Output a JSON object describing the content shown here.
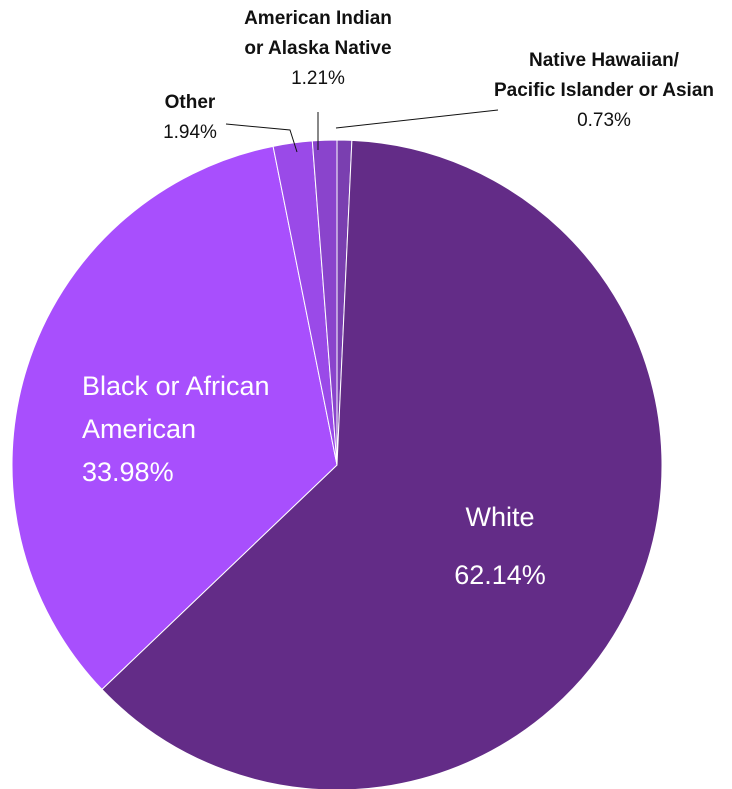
{
  "chart_data": {
    "type": "pie",
    "title": "",
    "slices": [
      {
        "label_lines": [
          "Native Hawaiian/",
          "Pacific Islander or Asian"
        ],
        "pct_text": "0.73%",
        "value": 0.73,
        "color": "#7a3fb0"
      },
      {
        "label_lines": [
          "White"
        ],
        "pct_text": "62.14%",
        "value": 62.14,
        "color": "#632c87"
      },
      {
        "label_lines": [
          "Black or African",
          "American"
        ],
        "pct_text": "33.98%",
        "value": 33.98,
        "color": "#a84ffd"
      },
      {
        "label_lines": [
          "Other"
        ],
        "pct_text": "1.94%",
        "value": 1.94,
        "color": "#9a4ae8"
      },
      {
        "label_lines": [
          "American Indian",
          "or Alaska Native"
        ],
        "pct_text": "1.21%",
        "value": 1.21,
        "color": "#8a44cc"
      }
    ]
  }
}
